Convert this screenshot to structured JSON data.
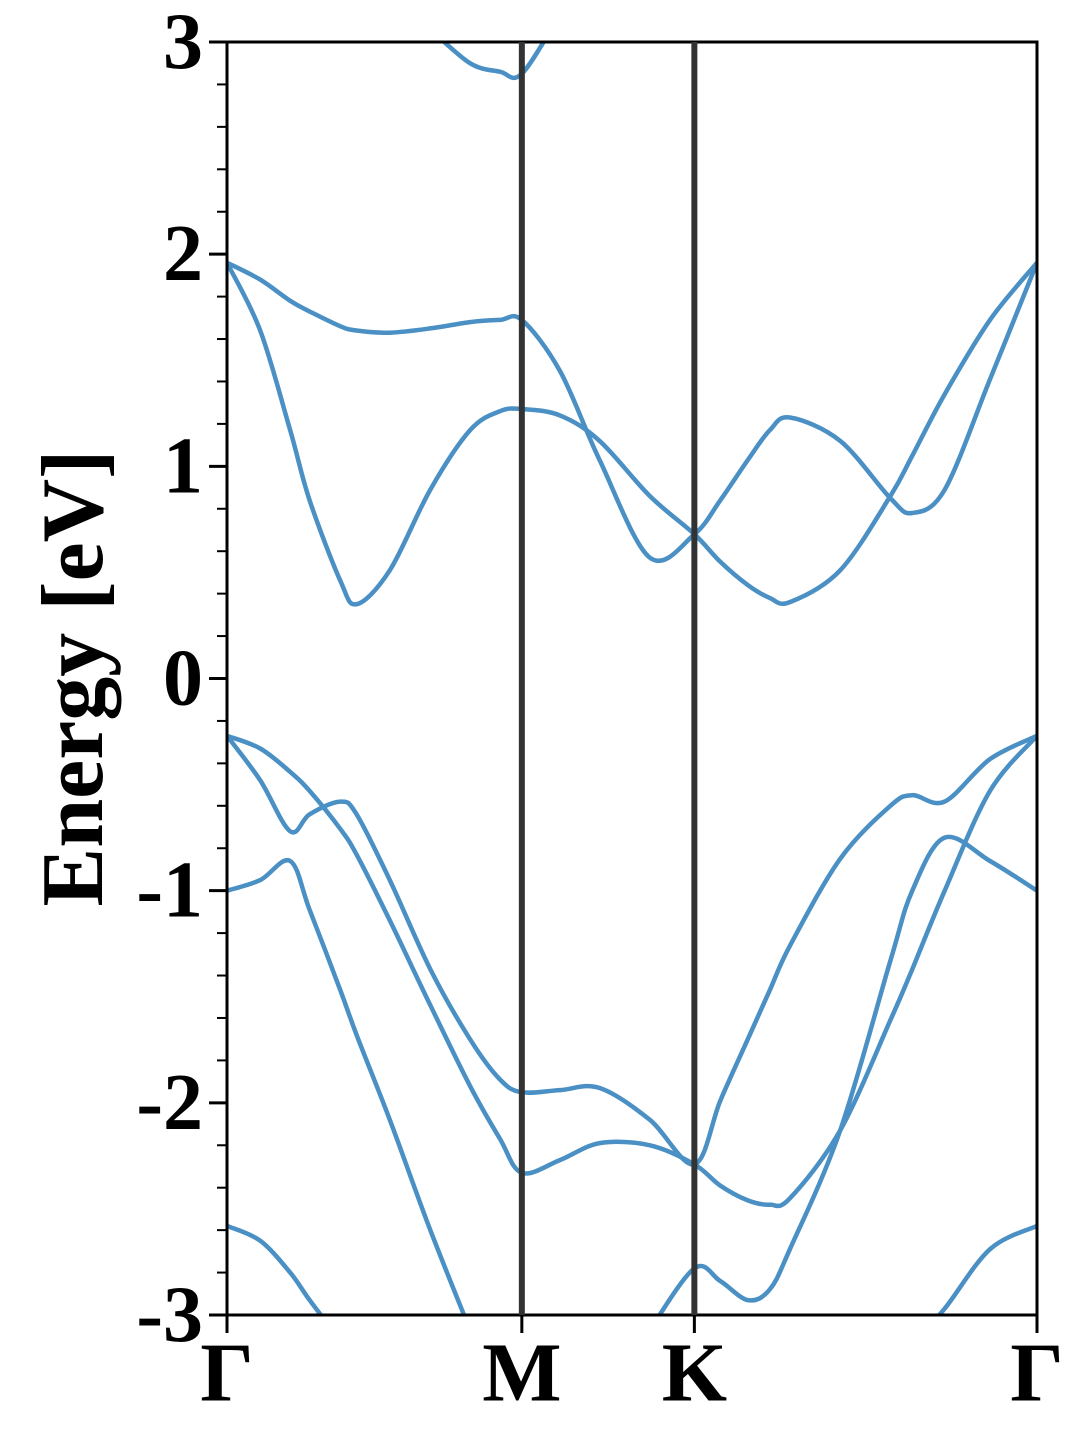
{
  "chart_data": {
    "type": "line",
    "ylabel": "Energy [eV]",
    "x": [
      0,
      0.041,
      0.078,
      0.102,
      0.14,
      0.16,
      0.201,
      0.251,
      0.3,
      0.337,
      0.364,
      0.411,
      0.46,
      0.522,
      0.577,
      0.609,
      0.643,
      0.67,
      0.695,
      0.757,
      0.819,
      0.846,
      0.886,
      0.942,
      1.0
    ],
    "xlim": [
      0,
      1
    ],
    "xticks": [
      {
        "value": 0,
        "label": "Γ"
      },
      {
        "value": 0.364,
        "label": "M"
      },
      {
        "value": 0.577,
        "label": "K"
      },
      {
        "value": 1.0,
        "label": "Γ"
      }
    ],
    "vlines": [
      0.364,
      0.577
    ],
    "vline_color": "#333333",
    "ylim": [
      -3,
      3
    ],
    "yticks": [
      -3,
      -2,
      -1,
      0,
      1,
      2,
      3
    ],
    "yminorticks": [
      -2.8,
      -2.6,
      -2.4,
      -2.2,
      -1.8,
      -1.6,
      -1.4,
      -1.2,
      -0.8,
      -0.6,
      -0.4,
      -0.2,
      0.2,
      0.4,
      0.6,
      0.8,
      1.2,
      1.4,
      1.6,
      1.8,
      2.2,
      2.4,
      2.6,
      2.8
    ],
    "series": [
      {
        "color": "#4a90c4",
        "values": [
          1.96,
          1.88,
          1.78,
          1.73,
          1.66,
          1.64,
          1.63,
          1.65,
          1.68,
          1.69,
          1.69,
          1.45,
          1.03,
          0.57,
          0.68,
          0.84,
          1.03,
          1.17,
          1.23,
          1.12,
          0.85,
          0.78,
          0.89,
          1.41,
          1.96
        ]
      },
      {
        "color": "#4a90c4",
        "values": [
          1.96,
          1.64,
          1.17,
          0.84,
          0.46,
          0.35,
          0.51,
          0.89,
          1.17,
          1.26,
          1.27,
          1.24,
          1.12,
          0.86,
          0.68,
          0.55,
          0.44,
          0.38,
          0.36,
          0.51,
          0.86,
          1.05,
          1.34,
          1.69,
          1.96
        ]
      },
      {
        "color": "#4a90c4",
        "values": [
          null,
          null,
          null,
          null,
          null,
          null,
          null,
          3.06,
          2.9,
          2.86,
          2.85,
          3.13,
          null,
          null,
          null,
          null,
          null,
          null,
          null,
          null,
          null,
          null,
          null,
          null,
          null
        ]
      },
      {
        "color": "#4a90c4",
        "values": [
          -0.27,
          -0.33,
          -0.44,
          -0.53,
          -0.71,
          -0.83,
          -1.14,
          -1.54,
          -1.92,
          -2.17,
          -2.33,
          -2.27,
          -2.19,
          -2.2,
          -2.29,
          -2.39,
          -2.46,
          -2.48,
          -2.45,
          -2.13,
          -1.61,
          -1.37,
          -1.0,
          -0.53,
          -0.27
        ]
      },
      {
        "color": "#4a90c4",
        "values": [
          -0.27,
          -0.48,
          -0.72,
          -0.64,
          -0.58,
          -0.64,
          -0.95,
          -1.37,
          -1.7,
          -1.89,
          -1.95,
          -1.94,
          -1.93,
          -2.08,
          -2.29,
          -1.99,
          -1.7,
          -1.47,
          -1.26,
          -0.85,
          -0.6,
          -0.55,
          -0.58,
          -0.38,
          -0.27
        ]
      },
      {
        "color": "#4a90c4",
        "values": [
          -1.0,
          -0.95,
          -0.86,
          -1.09,
          -1.47,
          -1.68,
          -2.08,
          -2.6,
          -3.07,
          null,
          null,
          null,
          null,
          -3.07,
          -2.78,
          -2.84,
          -2.93,
          -2.88,
          -2.69,
          -2.13,
          -1.33,
          -1.0,
          -0.75,
          -0.86,
          -1.0
        ]
      },
      {
        "color": "#4a90c4",
        "values": [
          -2.58,
          -2.65,
          -2.8,
          -2.93,
          -3.12,
          null,
          null,
          null,
          null,
          null,
          null,
          null,
          null,
          null,
          null,
          null,
          null,
          null,
          null,
          null,
          null,
          -3.14,
          -2.97,
          -2.69,
          -2.58
        ]
      }
    ]
  }
}
